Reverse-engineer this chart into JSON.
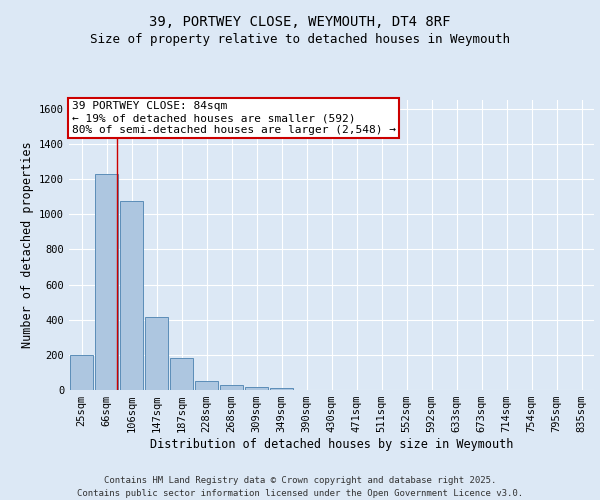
{
  "title_line1": "39, PORTWEY CLOSE, WEYMOUTH, DT4 8RF",
  "title_line2": "Size of property relative to detached houses in Weymouth",
  "xlabel": "Distribution of detached houses by size in Weymouth",
  "ylabel": "Number of detached properties",
  "categories": [
    "25sqm",
    "66sqm",
    "106sqm",
    "147sqm",
    "187sqm",
    "228sqm",
    "268sqm",
    "309sqm",
    "349sqm",
    "390sqm",
    "430sqm",
    "471sqm",
    "511sqm",
    "552sqm",
    "592sqm",
    "633sqm",
    "673sqm",
    "714sqm",
    "754sqm",
    "795sqm",
    "835sqm"
  ],
  "values": [
    200,
    1230,
    1075,
    415,
    180,
    50,
    28,
    18,
    10,
    0,
    0,
    0,
    0,
    0,
    0,
    0,
    0,
    0,
    0,
    0,
    0
  ],
  "bar_color": "#adc6e0",
  "bar_edge_color": "#5b8db8",
  "bar_edge_width": 0.7,
  "background_color": "#dce8f5",
  "grid_color": "#ffffff",
  "red_line_color": "#cc0000",
  "red_line_x": 1.42,
  "ylim": [
    0,
    1650
  ],
  "yticks": [
    0,
    200,
    400,
    600,
    800,
    1000,
    1200,
    1400,
    1600
  ],
  "annotation_text": "39 PORTWEY CLOSE: 84sqm\n← 19% of detached houses are smaller (592)\n80% of semi-detached houses are larger (2,548) →",
  "annotation_box_edge_color": "#cc0000",
  "annotation_box_bg": "#ffffff",
  "footer_line1": "Contains HM Land Registry data © Crown copyright and database right 2025.",
  "footer_line2": "Contains public sector information licensed under the Open Government Licence v3.0.",
  "title_fontsize": 10,
  "subtitle_fontsize": 9,
  "axis_label_fontsize": 8.5,
  "tick_fontsize": 7.5,
  "annotation_fontsize": 8,
  "footer_fontsize": 6.5
}
